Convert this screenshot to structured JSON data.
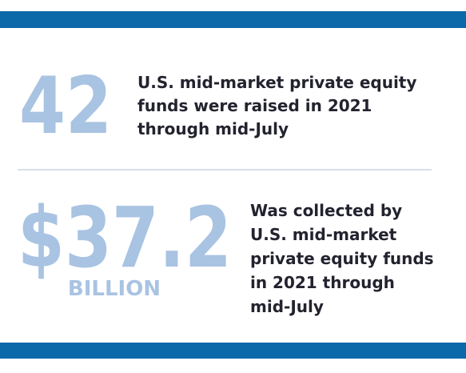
{
  "stats": [
    {
      "value": "42",
      "description": [
        "U.S. mid-market private equity",
        "funds were raised in 2021",
        "through mid-July"
      ]
    },
    {
      "value": "$37.2",
      "unit": "BILLION",
      "description": [
        "Was collected by",
        "U.S. mid-market",
        "private equity funds",
        "in 2021 through",
        "mid-July"
      ]
    }
  ]
}
